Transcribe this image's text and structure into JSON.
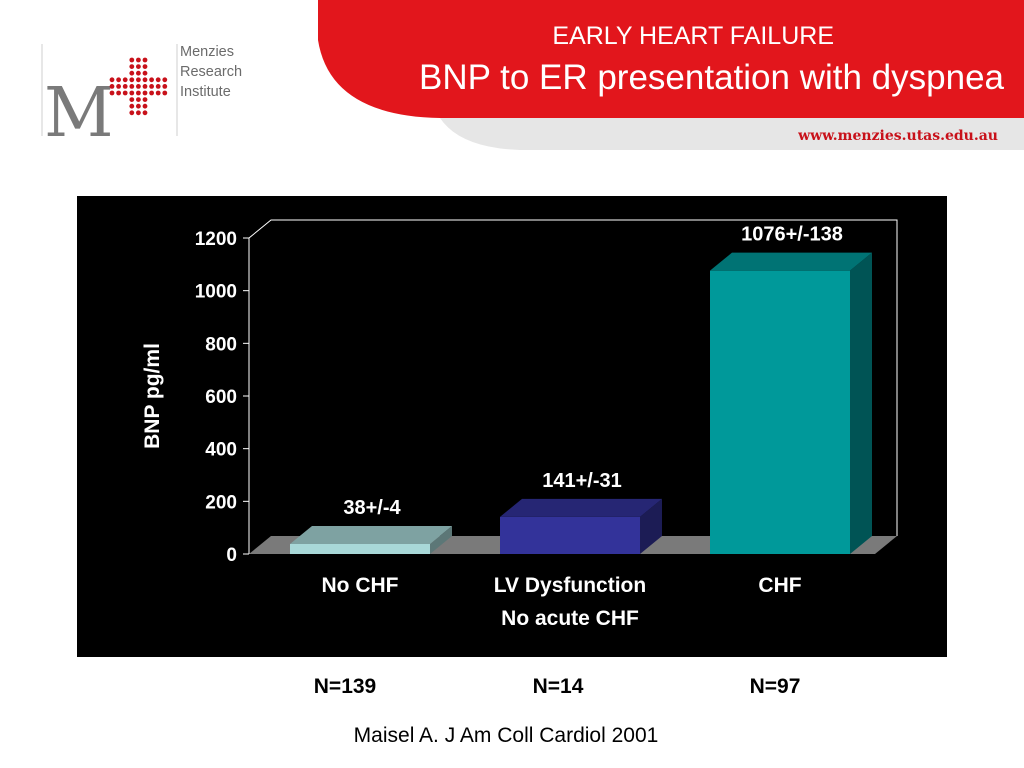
{
  "header": {
    "kicker": "EARLY HEART FAILURE",
    "title": "BNP to ER presentation with dyspnea",
    "website": "www.menzies.utas.edu.au",
    "brand_red": "#e2161c"
  },
  "logo": {
    "letter": "M",
    "lines": [
      "Menzies",
      "Research",
      "Institute"
    ]
  },
  "chart_data": {
    "type": "bar",
    "categories": [
      "No CHF",
      "LV Dysfunction\nNo acute CHF",
      "CHF"
    ],
    "values": [
      38,
      141,
      1076
    ],
    "data_labels": [
      "38+/-4",
      "141+/-31",
      "1076+/-138"
    ],
    "ylabel": "BNP pg/ml",
    "ylim": [
      0,
      1200
    ],
    "yticks": [
      0,
      200,
      400,
      600,
      800,
      1000,
      1200
    ],
    "colors": [
      "#a8d8d8",
      "#33339a",
      "#00999a"
    ],
    "background": "#000000",
    "style": "3d"
  },
  "sample_sizes": [
    "N=139",
    "N=14",
    "N=97"
  ],
  "citation": "Maisel A. J Am Coll Cardiol 2001"
}
